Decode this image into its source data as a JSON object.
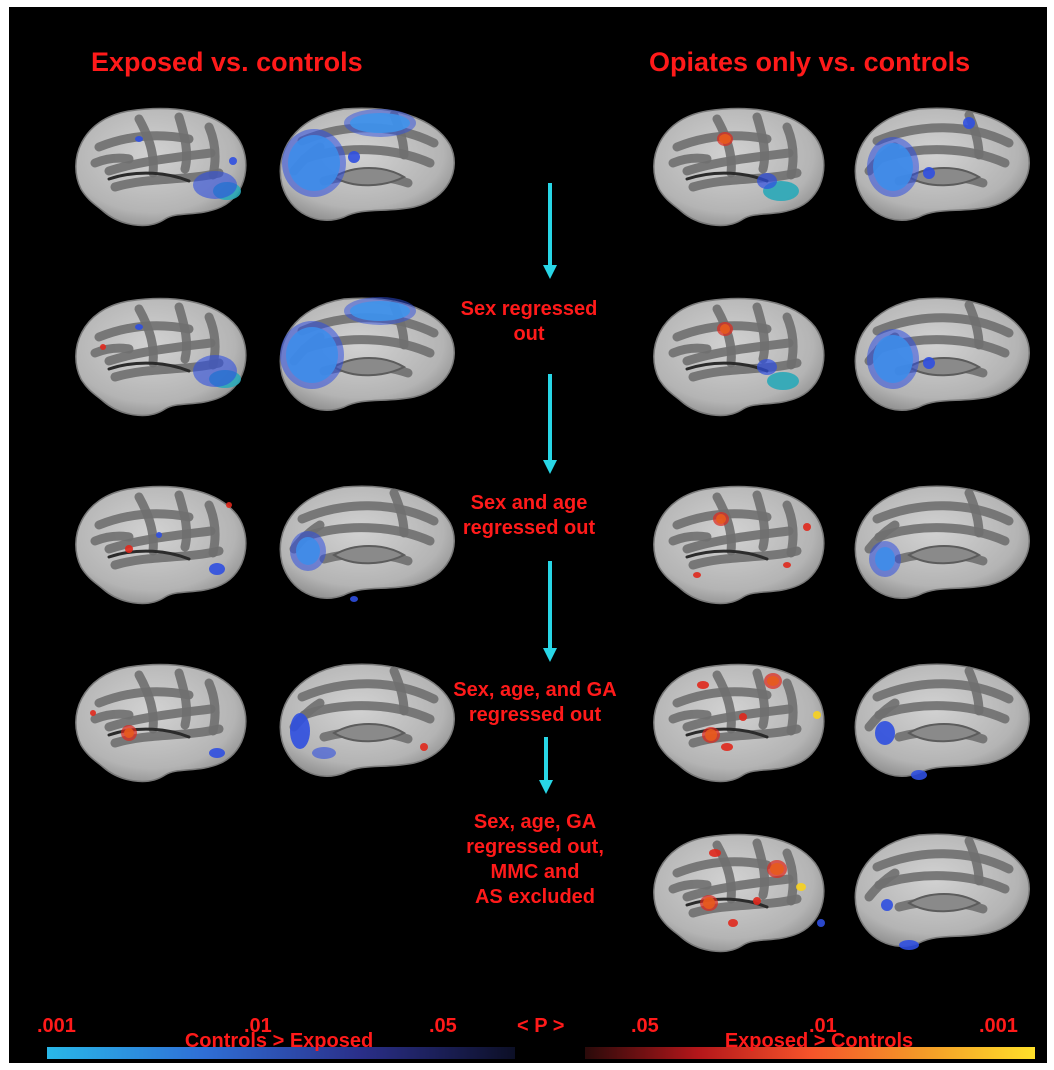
{
  "titles": {
    "left": "Exposed vs. controls",
    "right": "Opiates only vs. controls"
  },
  "steps": [
    {
      "id": "sex",
      "lines": [
        "Sex regressed",
        "out"
      ]
    },
    {
      "id": "sex-age",
      "lines": [
        "Sex and age",
        "regressed out"
      ]
    },
    {
      "id": "sex-age-ga",
      "lines": [
        "Sex, age, and GA",
        "regressed out"
      ]
    },
    {
      "id": "mmc-as",
      "lines": [
        "Sex, age, GA",
        "regressed out,",
        "MMC and",
        "AS excluded"
      ]
    }
  ],
  "colorbar": {
    "center_label": "< P >",
    "left_ticks": [
      ".001",
      ".01",
      ".05"
    ],
    "right_ticks": [
      ".05",
      ".01",
      ".001"
    ],
    "left_caption": "Controls > Exposed",
    "right_caption": "Exposed > Controls"
  },
  "colors": {
    "background": "#000000",
    "text": "#ff1a1a",
    "arrow": "#28d6e6",
    "controls_gt_exposed": [
      "#29b8e8",
      "#2f6fd6",
      "#2a2f8a",
      "#0c0f26"
    ],
    "exposed_gt_controls": [
      "#2a0a0a",
      "#b3161a",
      "#f5532a",
      "#f39a28",
      "#ffe02a"
    ]
  }
}
